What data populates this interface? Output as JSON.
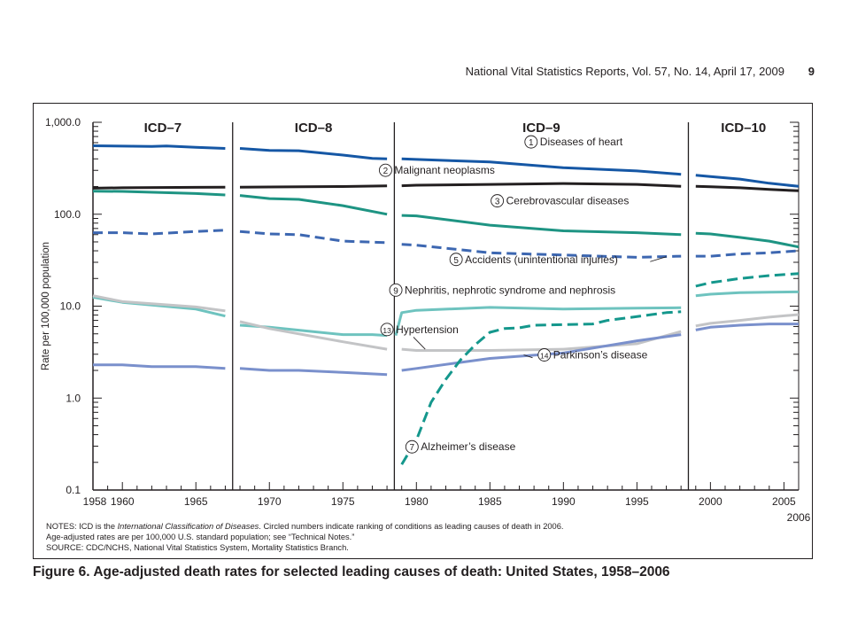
{
  "header": {
    "running_title": "National Vital Statistics Reports, Vol. 57, No. 14, April 17, 2009",
    "page_number": "9"
  },
  "notes": {
    "line1_prefix": "NOTES: ICD is the ",
    "line1_italic": "International Classification of Diseases",
    "line1_suffix": ". Circled numbers indicate ranking of conditions as leading causes of death in 2006.",
    "line2": "Age-adjusted rates are per 100,000 U.S. standard population; see “Technical Notes.”",
    "line3": "SOURCE: CDC/NCHS, National Vital Statistics System, Mortality Statistics Branch."
  },
  "caption": "Figure 6. Age-adjusted death rates for selected leading causes of death: United States, 1958–2006",
  "colors": {
    "heart": "#1557a5",
    "neoplasms": "#231f20",
    "cerebro": "#1e9483",
    "accidents": "#3d67b1",
    "nephritis": "#6ec3bf",
    "hypertension": "#c3c4c6",
    "parkinsons": "#7a90cc",
    "alzheimers": "#14978c"
  },
  "chart_data": {
    "type": "line",
    "ylabel": "Rate per 100,000 population",
    "y_scale": "log",
    "ylim": [
      0.1,
      1000
    ],
    "xlim": [
      1958,
      2006
    ],
    "y_ticks": [
      {
        "value": 1000,
        "label": "1,000.0"
      },
      {
        "value": 100,
        "label": "100.0"
      },
      {
        "value": 10,
        "label": "10.0"
      },
      {
        "value": 1,
        "label": "1.0"
      },
      {
        "value": 0.1,
        "label": "0.1"
      }
    ],
    "x_ticks": [
      {
        "value": 1958,
        "label": "1958"
      },
      {
        "value": 1960,
        "label": "1960"
      },
      {
        "value": 1965,
        "label": "1965"
      },
      {
        "value": 1970,
        "label": "1970"
      },
      {
        "value": 1975,
        "label": "1975"
      },
      {
        "value": 1980,
        "label": "1980"
      },
      {
        "value": 1985,
        "label": "1985"
      },
      {
        "value": 1990,
        "label": "1990"
      },
      {
        "value": 1995,
        "label": "1995"
      },
      {
        "value": 2000,
        "label": "2000"
      },
      {
        "value": 2005,
        "label": "2005"
      },
      {
        "value": 2006,
        "label": "2006"
      }
    ],
    "grid": false,
    "periods": [
      {
        "label": "ICD–7",
        "start": 1958,
        "end": 1967.5
      },
      {
        "label": "ICD–8",
        "start": 1967.5,
        "end": 1978.5
      },
      {
        "label": "ICD–9",
        "start": 1978.5,
        "end": 1998.5
      },
      {
        "label": "ICD–10",
        "start": 1998.5,
        "end": 2006
      }
    ],
    "series": [
      {
        "key": "heart",
        "rank": "1",
        "name": "Diseases of heart",
        "style": "solid",
        "segments": [
          {
            "x": [
              1958,
              1960,
              1962,
              1963,
              1965,
              1967
            ],
            "y": [
              555,
              550,
              545,
              552,
              535,
              520
            ]
          },
          {
            "x": [
              1968,
              1970,
              1972,
              1975,
              1977,
              1978
            ],
            "y": [
              520,
              495,
              490,
              440,
              405,
              400
            ]
          },
          {
            "x": [
              1979,
              1980,
              1985,
              1990,
              1995,
              1998
            ],
            "y": [
              400,
              395,
              370,
              320,
              296,
              272
            ]
          },
          {
            "x": [
              1999,
              2000,
              2002,
              2004,
              2006
            ],
            "y": [
              266,
              257,
              241,
              217,
              201
            ]
          }
        ]
      },
      {
        "key": "neoplasms",
        "rank": "2",
        "name": "Malignant neoplasms",
        "style": "solid",
        "segments": [
          {
            "x": [
              1958,
              1960,
              1965,
              1967
            ],
            "y": [
              192,
              194,
              196,
              197
            ]
          },
          {
            "x": [
              1968,
              1970,
              1975,
              1978
            ],
            "y": [
              197,
              198,
              200,
              203
            ]
          },
          {
            "x": [
              1979,
              1980,
              1985,
              1990,
              1995,
              1998
            ],
            "y": [
              204,
              207,
              211,
              216,
              211,
              201
            ]
          },
          {
            "x": [
              1999,
              2000,
              2002,
              2004,
              2006
            ],
            "y": [
              201,
              199,
              194,
              186,
              180
            ]
          }
        ]
      },
      {
        "key": "cerebro",
        "rank": "3",
        "name": "Cerebrovascular diseases",
        "style": "solid",
        "segments": [
          {
            "x": [
              1958,
              1960,
              1965,
              1967
            ],
            "y": [
              178,
              177,
              168,
              162
            ]
          },
          {
            "x": [
              1968,
              1970,
              1972,
              1975,
              1978
            ],
            "y": [
              160,
              148,
              145,
              124,
              100
            ]
          },
          {
            "x": [
              1979,
              1980,
              1985,
              1990,
              1995,
              1998
            ],
            "y": [
              97,
              96,
              76,
              66,
              63,
              60
            ]
          },
          {
            "x": [
              1999,
              2000,
              2002,
              2004,
              2006
            ],
            "y": [
              62,
              61,
              56,
              51,
              44
            ]
          }
        ]
      },
      {
        "key": "accidents",
        "rank": "5",
        "name": "Accidents (unintentional injuries)",
        "style": "dashed",
        "segments": [
          {
            "x": [
              1958,
              1960,
              1962,
              1965,
              1967
            ],
            "y": [
              63,
              63,
              61,
              65,
              67
            ]
          },
          {
            "x": [
              1968,
              1970,
              1972,
              1975,
              1978
            ],
            "y": [
              65,
              61,
              60,
              51,
              49
            ]
          },
          {
            "x": [
              1979,
              1980,
              1985,
              1990,
              1995,
              1998
            ],
            "y": [
              47,
              46,
              38,
              36,
              34,
              35
            ]
          },
          {
            "x": [
              1999,
              2000,
              2002,
              2004,
              2006
            ],
            "y": [
              35,
              35,
              37,
              38,
              40
            ]
          }
        ]
      },
      {
        "key": "nephritis",
        "rank": "9",
        "name": "Nephritis, nephrotic syndrome and nephrosis",
        "style": "solid",
        "segments": [
          {
            "x": [
              1958,
              1960,
              1965,
              1967
            ],
            "y": [
              12.5,
              11.0,
              9.3,
              7.8
            ]
          },
          {
            "x": [
              1968,
              1970,
              1975,
              1977,
              1978
            ],
            "y": [
              6.2,
              5.9,
              4.9,
              4.9,
              4.8
            ]
          },
          {
            "x": [
              1978.6,
              1979,
              1980,
              1985,
              1990,
              1995,
              1998
            ],
            "y": [
              4.8,
              8.5,
              9.0,
              9.7,
              9.3,
              9.5,
              9.6
            ]
          },
          {
            "x": [
              1999,
              2000,
              2002,
              2004,
              2006
            ],
            "y": [
              13.0,
              13.5,
              14.0,
              14.2,
              14.3
            ]
          }
        ]
      },
      {
        "key": "hypertension",
        "rank": "13",
        "name": "Hypertension",
        "style": "solid",
        "segments": [
          {
            "x": [
              1958,
              1960,
              1965,
              1967
            ],
            "y": [
              13.0,
              11.2,
              9.8,
              8.9
            ]
          },
          {
            "x": [
              1968,
              1970,
              1975,
              1978
            ],
            "y": [
              6.8,
              5.7,
              4.1,
              3.4
            ]
          },
          {
            "x": [
              1979,
              1980,
              1985,
              1990,
              1995,
              1998
            ],
            "y": [
              3.4,
              3.3,
              3.3,
              3.4,
              3.9,
              5.3
            ]
          },
          {
            "x": [
              1999,
              2000,
              2002,
              2004,
              2006
            ],
            "y": [
              6.1,
              6.5,
              7.0,
              7.6,
              8.1
            ]
          }
        ]
      },
      {
        "key": "parkinsons",
        "rank": "14",
        "name": "Parkinson’s disease",
        "style": "solid",
        "segments": [
          {
            "x": [
              1958,
              1960,
              1962,
              1965,
              1967
            ],
            "y": [
              2.3,
              2.3,
              2.2,
              2.2,
              2.1
            ]
          },
          {
            "x": [
              1968,
              1970,
              1972,
              1975,
              1978
            ],
            "y": [
              2.1,
              2.0,
              2.0,
              1.9,
              1.8
            ]
          },
          {
            "x": [
              1979,
              1980,
              1985,
              1990,
              1995,
              1998
            ],
            "y": [
              2.0,
              2.1,
              2.7,
              3.1,
              4.2,
              4.9
            ]
          },
          {
            "x": [
              1999,
              2000,
              2002,
              2004,
              2006
            ],
            "y": [
              5.5,
              5.9,
              6.2,
              6.4,
              6.4
            ]
          }
        ]
      },
      {
        "key": "alzheimers",
        "rank": "7",
        "name": "Alzheimer’s disease",
        "style": "dashed",
        "segments": [
          {
            "x": [
              1979,
              1980,
              1981,
              1982,
              1983,
              1984,
              1985,
              1986,
              1987,
              1988,
              1990,
              1992,
              1993,
              1995,
              1996,
              1997,
              1998
            ],
            "y": [
              0.19,
              0.35,
              0.9,
              1.6,
              2.6,
              3.8,
              5.2,
              5.7,
              5.8,
              6.2,
              6.3,
              6.4,
              7.0,
              7.7,
              8.1,
              8.5,
              8.7
            ]
          },
          {
            "x": [
              1999,
              2000,
              2002,
              2004,
              2006
            ],
            "y": [
              16.5,
              18.0,
              20.0,
              21.5,
              22.6
            ]
          }
        ]
      }
    ],
    "labels": [
      {
        "series": "heart",
        "text": "Diseases of heart",
        "x": 1987.8,
        "y": 560
      },
      {
        "series": "neoplasms",
        "text": "Malignant neoplasms",
        "x": 1977.9,
        "y": 275
      },
      {
        "series": "cerebro",
        "text": "Cerebrovascular diseases",
        "x": 1985.5,
        "y": 128
      },
      {
        "series": "accidents",
        "text": "Accidents (unintentional injuries)",
        "x": 1982.7,
        "y": 29.5
      },
      {
        "series": "nephritis",
        "text": "Nephritis, nephrotic syndrome and nephrosis",
        "x": 1978.6,
        "y": 13.7
      },
      {
        "series": "hypertension",
        "text": "Hypertension",
        "x": 1978.0,
        "y": 5.1
      },
      {
        "series": "parkinsons",
        "text": "Parkinson’s disease",
        "x": 1988.7,
        "y": 2.7
      },
      {
        "series": "alzheimers",
        "text": "Alzheimer’s disease",
        "x": 1979.7,
        "y": 0.27
      }
    ]
  }
}
